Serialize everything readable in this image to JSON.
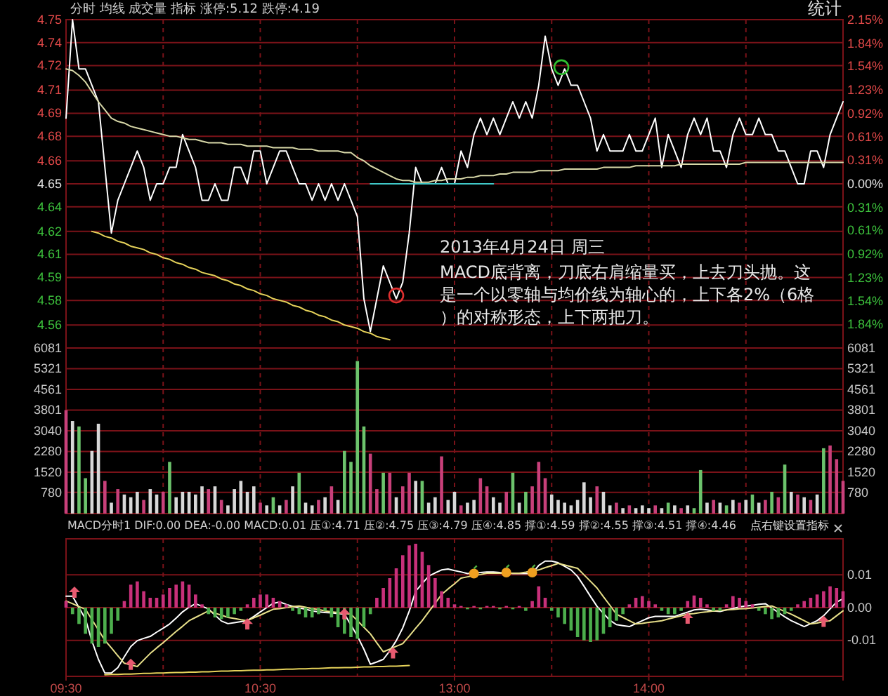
{
  "chart_data": [
    {
      "type": "line",
      "title": "分时 均线 成交量 指标 涨停:5.12 跌停:4.19",
      "annotations": [
        "2013年4月24日 周三",
        "MACD底背离，刀底右肩缩量买，上去刀头抛。这是一个以零轴与均价线为轴心的，上下各2%（6格）的对称形态，上下两把刀。",
        "统计"
      ],
      "categories": [
        null,
        null,
        null,
        null,
        null,
        null,
        null,
        null,
        null,
        null,
        null,
        null,
        null,
        null,
        null,
        null,
        null,
        null,
        null,
        null,
        null,
        null,
        null,
        null,
        null,
        null,
        null,
        null,
        null,
        null,
        null,
        null,
        null,
        null,
        null,
        null,
        null,
        null,
        null,
        null,
        null,
        null,
        null,
        null,
        null,
        null,
        null,
        null,
        null,
        null,
        null,
        null,
        null,
        null,
        null,
        null,
        null,
        null,
        null,
        null,
        null,
        null,
        null,
        null,
        null,
        null,
        null,
        null,
        null,
        null,
        null,
        null,
        null,
        null,
        null,
        null,
        null,
        null,
        null,
        null,
        null,
        null,
        null,
        null,
        null,
        null,
        null,
        null,
        null,
        null,
        null,
        null,
        null,
        null,
        null,
        null,
        null,
        null,
        null,
        null,
        null,
        null,
        null,
        null,
        null,
        null,
        null,
        null,
        null,
        null,
        null,
        null,
        null,
        null,
        null,
        null,
        null,
        null,
        null,
        null,
        null
      ],
      "ylim": [
        4.55,
        4.75
      ],
      "yticks": [
        4.75,
        {
          "value": 4.736,
          "label": "4.74"
        },
        {
          "value": 4.722,
          "label": "4.72"
        },
        {
          "value": 4.707,
          "label": "4.71"
        },
        {
          "value": 4.693,
          "label": "4.69"
        },
        {
          "value": 4.679,
          "label": "4.68"
        },
        {
          "value": 4.664,
          "label": "4.66"
        },
        4.65,
        {
          "value": 4.636,
          "label": "4.64"
        },
        {
          "value": 4.621,
          "label": "4.62"
        },
        {
          "value": 4.607,
          "label": "4.61"
        },
        {
          "value": 4.593,
          "label": "4.59"
        },
        {
          "value": 4.579,
          "label": "4.58"
        },
        {
          "value": 4.564,
          "label": "4.56"
        }
      ],
      "y2lim": [
        -2.15,
        2.15
      ],
      "y2ticks": [
        {
          "value": 2.15,
          "label": "2.15%"
        },
        {
          "value": 1.84,
          "label": "1.84%"
        },
        {
          "value": 1.54,
          "label": "1.54%"
        },
        {
          "value": 1.23,
          "label": "1.23%"
        },
        {
          "value": 0.92,
          "label": "0.92%"
        },
        {
          "value": 0.61,
          "label": "0.61%"
        },
        {
          "value": 0.31,
          "label": "0.31%"
        },
        {
          "value": 0,
          "label": "0.00%"
        },
        {
          "value": -0.31,
          "label": "0.31%"
        },
        {
          "value": -0.61,
          "label": "0.61%"
        },
        {
          "value": -0.92,
          "label": "0.92%"
        },
        {
          "value": -1.23,
          "label": "1.23%"
        },
        {
          "value": -1.54,
          "label": "1.54%"
        },
        {
          "value": -1.84,
          "label": "1.84%"
        }
      ],
      "tick_labels": "y",
      "grid": true,
      "series": [
        {
          "color": "#ffffff",
          "values": [
            4.69,
            4.75,
            4.72,
            4.72,
            4.71,
            4.7,
            4.66,
            4.62,
            4.64,
            4.65,
            4.66,
            4.67,
            4.66,
            4.64,
            4.65,
            4.65,
            4.66,
            4.66,
            4.68,
            4.67,
            4.66,
            4.64,
            4.64,
            4.65,
            4.64,
            4.64,
            4.66,
            4.66,
            4.65,
            4.67,
            4.67,
            4.65,
            4.66,
            4.67,
            4.67,
            4.66,
            4.65,
            4.65,
            4.64,
            4.65,
            4.64,
            4.65,
            4.64,
            4.65,
            4.64,
            4.63,
            4.58,
            4.56,
            4.58,
            4.6,
            4.59,
            4.58,
            4.59,
            4.62,
            4.66,
            4.65,
            4.65,
            4.65,
            4.66,
            4.65,
            4.65,
            4.67,
            4.66,
            4.68,
            4.69,
            4.68,
            4.69,
            4.68,
            4.69,
            4.7,
            4.69,
            4.7,
            4.69,
            4.71,
            4.74,
            4.72,
            4.71,
            4.72,
            4.71,
            4.71,
            4.7,
            4.69,
            4.67,
            4.68,
            4.67,
            4.67,
            4.67,
            4.68,
            4.67,
            4.67,
            4.68,
            4.69,
            4.66,
            4.68,
            4.67,
            4.66,
            4.68,
            4.69,
            4.68,
            4.69,
            4.67,
            4.67,
            4.66,
            4.68,
            4.69,
            4.68,
            4.68,
            4.69,
            4.68,
            4.68,
            4.67,
            4.67,
            4.66,
            4.65,
            4.65,
            4.67,
            4.67,
            4.66,
            4.68,
            4.69,
            4.7
          ]
        },
        {
          "color": "#d8d8a8",
          "values": [
            4.72,
            4.719,
            4.716,
            4.712,
            4.706,
            4.7,
            4.695,
            4.69,
            4.688,
            4.687,
            4.685,
            4.684,
            4.683,
            4.682,
            4.681,
            4.68,
            4.679,
            4.679,
            4.678,
            4.677,
            4.677,
            4.676,
            4.675,
            4.675,
            4.675,
            4.674,
            4.674,
            4.674,
            4.673,
            4.673,
            4.673,
            4.673,
            4.672,
            4.672,
            4.672,
            4.672,
            4.671,
            4.671,
            4.671,
            4.67,
            4.67,
            4.67,
            4.67,
            4.669,
            4.669,
            4.666,
            4.664,
            4.661,
            4.659,
            4.657,
            4.655,
            4.653,
            4.652,
            4.652,
            4.651,
            4.651,
            4.651,
            4.652,
            4.652,
            4.653,
            4.653,
            4.653,
            4.654,
            4.654,
            4.655,
            4.655,
            4.655,
            4.656,
            4.656,
            4.657,
            4.657,
            4.657,
            4.657,
            4.658,
            4.658,
            4.658,
            4.658,
            4.659,
            4.659,
            4.659,
            4.659,
            4.659,
            4.659,
            4.66,
            4.66,
            4.66,
            4.66,
            4.66,
            4.661,
            4.661,
            4.661,
            4.661,
            4.661,
            4.661,
            4.661,
            4.662,
            4.662,
            4.662,
            4.662,
            4.662,
            4.662,
            4.662,
            4.662,
            4.662,
            4.662,
            4.663,
            4.663,
            4.663,
            4.663,
            4.663,
            4.663,
            4.663,
            4.663,
            4.663,
            4.663,
            4.663,
            4.663,
            4.663,
            4.663,
            4.663,
            4.663
          ]
        },
        {
          "color": "#e6d25a",
          "values": [
            null,
            null,
            null,
            null,
            4.621,
            4.62,
            4.618,
            4.617,
            4.615,
            4.614,
            4.612,
            4.611,
            4.61,
            4.608,
            4.607,
            4.605,
            4.604,
            4.602,
            4.601,
            4.599,
            4.598,
            4.596,
            4.595,
            4.594,
            4.592,
            4.591,
            4.589,
            4.588,
            4.586,
            4.585,
            4.583,
            4.582,
            4.58,
            4.579,
            4.578,
            4.576,
            4.575,
            4.573,
            4.572,
            4.57,
            4.569,
            4.567,
            4.566,
            4.564,
            4.563,
            4.562,
            4.56,
            4.559,
            4.557,
            4.556,
            4.555,
            null,
            null,
            null,
            null,
            null,
            null,
            null,
            null,
            null,
            null,
            null,
            null,
            null,
            null,
            null,
            null,
            null,
            null,
            null,
            null,
            null,
            null,
            null,
            null,
            null,
            null,
            null,
            null,
            null,
            null,
            null,
            null,
            null,
            null,
            null,
            null,
            null,
            null,
            null,
            null,
            null,
            null,
            null,
            null,
            null,
            null,
            null,
            null,
            null,
            null,
            null,
            null,
            null,
            null,
            null,
            null,
            null,
            null,
            null,
            null,
            null,
            null,
            null,
            null,
            null,
            null,
            null,
            null,
            null,
            null
          ]
        },
        {
          "color": "#40c8c8",
          "values": [
            null,
            null,
            null,
            null,
            null,
            null,
            null,
            null,
            null,
            null,
            null,
            null,
            null,
            null,
            null,
            null,
            null,
            null,
            null,
            null,
            null,
            null,
            null,
            null,
            null,
            null,
            null,
            null,
            null,
            null,
            null,
            null,
            null,
            null,
            null,
            null,
            null,
            null,
            null,
            null,
            null,
            null,
            null,
            null,
            null,
            null,
            null,
            4.65,
            4.65,
            4.65,
            4.65,
            4.65,
            4.65,
            4.65,
            4.65,
            4.65,
            4.65,
            4.65,
            4.65,
            4.65,
            4.65,
            4.65,
            4.65,
            4.65,
            4.65,
            4.65,
            4.65,
            null,
            null,
            null,
            null,
            null,
            null,
            null,
            null,
            null,
            null,
            null,
            null,
            null,
            null,
            null,
            null,
            null,
            null,
            null,
            null,
            null,
            null,
            null,
            null,
            null,
            null,
            null,
            null,
            null,
            null,
            null,
            null,
            null,
            null,
            null,
            null,
            null,
            null,
            null,
            null,
            null,
            null,
            null,
            null,
            null,
            null,
            null,
            null,
            null,
            null,
            null,
            null,
            null,
            null
          ]
        }
      ]
    },
    {
      "type": "bar",
      "categories": [
        null,
        null,
        null,
        null,
        null,
        null,
        null,
        null,
        null,
        null,
        null,
        null,
        null,
        null,
        null,
        null,
        null,
        null,
        null,
        null,
        null,
        null,
        null,
        null,
        null,
        null,
        null,
        null,
        null,
        null,
        null,
        null,
        null,
        null,
        null,
        null,
        null,
        null,
        null,
        null,
        null,
        null,
        null,
        null,
        null,
        null,
        null,
        null,
        null,
        null,
        null,
        null,
        null,
        null,
        null,
        null,
        null,
        null,
        null,
        null,
        null,
        null,
        null,
        null,
        null,
        null,
        null,
        null,
        null,
        null,
        null,
        null,
        null,
        null,
        null,
        null,
        null,
        null,
        null,
        null,
        null,
        null,
        null,
        null,
        null,
        null,
        null,
        null,
        null,
        null,
        null,
        null,
        null,
        null,
        null,
        null,
        null,
        null,
        null,
        null,
        null,
        null,
        null,
        null,
        null,
        null,
        null,
        null,
        null,
        null,
        null,
        null,
        null,
        null,
        null,
        null,
        null,
        null,
        null,
        null,
        null
      ],
      "ylim": [
        0,
        6081
      ],
      "yticks": [
        780,
        1520,
        2280,
        3040,
        3801,
        4561,
        5321,
        6081
      ],
      "y2lim": [
        0,
        6081
      ],
      "y2ticks": [
        780,
        1520,
        2280,
        3040,
        3801,
        4561,
        5321,
        6081
      ],
      "tick_labels": "y",
      "grid": true,
      "series": [
        {
          "values": [
            3800,
            3400,
            3200,
            1300,
            2300,
            3300,
            1200,
            400,
            900,
            700,
            600,
            800,
            500,
            900,
            700,
            800,
            1900,
            600,
            800,
            800,
            700,
            1000,
            900,
            1000,
            500,
            300,
            900,
            1200,
            800,
            1000,
            400,
            300,
            600,
            300,
            500,
            1000,
            1500,
            400,
            300,
            500,
            600,
            1000,
            500,
            2300,
            1900,
            5600,
            3200,
            2200,
            900,
            1500,
            1500,
            600,
            1000,
            1500,
            1200,
            1200,
            400,
            600,
            2100,
            500,
            800,
            300,
            400,
            500,
            1300,
            1000,
            600,
            400,
            800,
            1500,
            400,
            800,
            1000,
            1900,
            1300,
            700,
            500,
            400,
            300,
            500,
            1150,
            600,
            1000,
            800,
            300,
            400,
            200,
            300,
            200,
            300,
            200,
            300,
            200,
            400,
            300,
            200,
            300,
            200,
            1600,
            400,
            500,
            400,
            300,
            500,
            400,
            500,
            700,
            400,
            500,
            800,
            600,
            1800,
            800,
            700,
            600,
            500,
            700,
            2400,
            2500,
            2000,
            1200
          ],
          "colors": [
            "#c8407a",
            "#d8d8d8",
            "#6cc36c",
            "#6cc36c",
            "#d8d8d8",
            "#d8d8d8",
            "#c8407a",
            "#d8d8d8",
            "#c8407a",
            "#d8d8d8",
            "#d8d8d8",
            "#d8d8d8",
            "#c8407a",
            "#d8d8d8",
            "#d8d8d8",
            "#c8407a",
            "#6cc36c",
            "#d8d8d8",
            "#d8d8d8",
            "#d8d8d8",
            "#d8d8d8",
            "#d8d8d8",
            "#c8407a",
            "#d8d8d8",
            "#c8407a",
            "#d8d8d8",
            "#d8d8d8",
            "#d8d8d8",
            "#d8d8d8",
            "#d8d8d8",
            "#c8407a",
            "#d8d8d8",
            "#6cc36c",
            "#d8d8d8",
            "#c8407a",
            "#d8d8d8",
            "#6cc36c",
            "#d8d8d8",
            "#d8d8d8",
            "#c8407a",
            "#d8d8d8",
            "#c8407a",
            "#d8d8d8",
            "#6cc36c",
            "#6cc36c",
            "#6cc36c",
            "#6cc36c",
            "#c8407a",
            "#c8407a",
            "#6cc36c",
            "#c8407a",
            "#d8d8d8",
            "#c8407a",
            "#c8407a",
            "#d8d8d8",
            "#6cc36c",
            "#d8d8d8",
            "#d8d8d8",
            "#c8407a",
            "#d8d8d8",
            "#d8d8d8",
            "#c8407a",
            "#d8d8d8",
            "#d8d8d8",
            "#c8407a",
            "#c8407a",
            "#d8d8d8",
            "#d8d8d8",
            "#c8407a",
            "#6cc36c",
            "#d8d8d8",
            "#6cc36c",
            "#c8407a",
            "#c8407a",
            "#c8407a",
            "#d8d8d8",
            "#d8d8d8",
            "#d8d8d8",
            "#d8d8d8",
            "#d8d8d8",
            "#d8d8d8",
            "#d8d8d8",
            "#c8407a",
            "#d8d8d8",
            "#d8d8d8",
            "#c8407a",
            "#d8d8d8",
            "#c8407a",
            "#d8d8d8",
            "#d8d8d8",
            "#d8d8d8",
            "#c8407a",
            "#d8d8d8",
            "#6cc36c",
            "#d8d8d8",
            "#c8407a",
            "#d8d8d8",
            "#6cc36c",
            "#6cc36c",
            "#d8d8d8",
            "#c8407a",
            "#d8d8d8",
            "#6cc36c",
            "#d8d8d8",
            "#c8407a",
            "#d8d8d8",
            "#6cc36c",
            "#d8d8d8",
            "#c8407a",
            "#6cc36c",
            "#c8407a",
            "#6cc36c",
            "#d8d8d8",
            "#c8407a",
            "#d8d8d8",
            "#c8407a",
            "#d8d8d8",
            "#6cc36c",
            "#c8407a",
            "#c8407a",
            "#c8407a"
          ]
        }
      ]
    },
    {
      "type": "bar",
      "title": "MACD分时1 DIF:0.00 DEA:-0.00 MACD:0.01 压①:4.71 压②:4.75 压③:4.79 压④:4.85 撑①:4.59 撑②:4.55 撑③:4.51 撑④:4.46",
      "annotations": [
        "点右键设置指标"
      ],
      "categories": [
        "09:30",
        null,
        null,
        null,
        null,
        null,
        null,
        null,
        null,
        null,
        null,
        null,
        null,
        null,
        null,
        null,
        null,
        null,
        null,
        null,
        null,
        null,
        null,
        null,
        null,
        null,
        null,
        null,
        null,
        null,
        "10:30",
        null,
        null,
        null,
        null,
        null,
        null,
        null,
        null,
        null,
        null,
        null,
        null,
        null,
        null,
        null,
        null,
        null,
        null,
        null,
        null,
        null,
        null,
        null,
        null,
        null,
        null,
        null,
        null,
        null,
        "13:00",
        null,
        null,
        null,
        null,
        null,
        null,
        null,
        null,
        null,
        null,
        null,
        null,
        null,
        null,
        null,
        null,
        null,
        null,
        null,
        null,
        null,
        null,
        null,
        null,
        null,
        null,
        null,
        null,
        null,
        "14:00",
        null,
        null,
        null,
        null,
        null,
        null,
        null,
        null,
        null,
        null,
        null,
        null,
        null,
        null,
        null,
        null,
        null,
        null,
        null,
        null,
        null,
        null,
        null,
        null,
        null,
        null,
        null,
        null,
        null,
        null
      ],
      "y2lim": [
        -0.021,
        0.021
      ],
      "y2ticks": [
        0.01,
        {
          "value": 0,
          "label": "0.00"
        },
        -0.01
      ],
      "grid": true,
      "series": [
        {
          "axis": "y2",
          "values": [
            0.002,
            -0.002,
            -0.005,
            -0.008,
            -0.011,
            -0.012,
            -0.011,
            -0.008,
            -0.004,
            0.002,
            0.007,
            0.008,
            0.005,
            0.003,
            0.003,
            0.004,
            0.006,
            0.007,
            0.008,
            0.007,
            0.004,
            0.001,
            -0.002,
            -0.003,
            -0.0035,
            -0.003,
            -0.002,
            -0.001,
            0.001,
            0.003,
            0.004,
            0.004,
            0.003,
            0.002,
            0.001,
            -0.001,
            -0.002,
            -0.003,
            -0.003,
            -0.002,
            -0.001,
            -0.003,
            -0.006,
            -0.008,
            -0.009,
            -0.0095,
            -0.006,
            -0.002,
            0.003,
            0.006,
            0.009,
            0.012,
            0.016,
            0.019,
            0.0195,
            0.017,
            0.013,
            0.009,
            0.005,
            0.003,
            0.001,
            0.0005,
            -0.0005,
            0.0005,
            -0.0005,
            0.0005,
            0.0005,
            -0.0005,
            0.0005,
            -0.0005,
            0.0005,
            -0.001,
            0.002,
            0.0065,
            0.003,
            -0.001,
            -0.003,
            -0.005,
            -0.007,
            -0.009,
            -0.01,
            -0.0105,
            -0.01,
            -0.008,
            -0.006,
            -0.004,
            -0.002,
            0.001,
            0.003,
            0.0035,
            0.002,
            0.001,
            -0.001,
            -0.002,
            -0.002,
            -0.001,
            0.002,
            0.0037,
            0.003,
            0.001,
            -0.001,
            -0.001,
            0.001,
            0.0035,
            0.003,
            0.002,
            0.001,
            -0.001,
            -0.002,
            -0.0035,
            -0.003,
            -0.002,
            -0.001,
            0.001,
            0.002,
            0.003,
            0.004,
            0.005,
            0.0065,
            0.006,
            0.005
          ],
          "colors": [
            "#c8307a",
            "#4cae4c",
            "#4cae4c",
            "#4cae4c",
            "#4cae4c",
            "#4cae4c",
            "#4cae4c",
            "#4cae4c",
            "#4cae4c",
            "#c8307a",
            "#c8307a",
            "#c8307a",
            "#c8307a",
            "#c8307a",
            "#c8307a",
            "#c8307a",
            "#c8307a",
            "#c8307a",
            "#c8307a",
            "#c8307a",
            "#c8307a",
            "#c8307a",
            "#4cae4c",
            "#4cae4c",
            "#4cae4c",
            "#4cae4c",
            "#4cae4c",
            "#4cae4c",
            "#c8307a",
            "#c8307a",
            "#c8307a",
            "#c8307a",
            "#c8307a",
            "#c8307a",
            "#c8307a",
            "#4cae4c",
            "#4cae4c",
            "#4cae4c",
            "#4cae4c",
            "#4cae4c",
            "#4cae4c",
            "#4cae4c",
            "#4cae4c",
            "#4cae4c",
            "#4cae4c",
            "#4cae4c",
            "#4cae4c",
            "#4cae4c",
            "#c8307a",
            "#c8307a",
            "#c8307a",
            "#c8307a",
            "#c8307a",
            "#c8307a",
            "#c8307a",
            "#c8307a",
            "#c8307a",
            "#c8307a",
            "#c8307a",
            "#c8307a",
            "#c8307a",
            "#c8307a",
            "#4cae4c",
            "#c8307a",
            "#4cae4c",
            "#c8307a",
            "#c8307a",
            "#4cae4c",
            "#c8307a",
            "#4cae4c",
            "#c8307a",
            "#4cae4c",
            "#c8307a",
            "#c8307a",
            "#c8307a",
            "#4cae4c",
            "#4cae4c",
            "#4cae4c",
            "#4cae4c",
            "#4cae4c",
            "#4cae4c",
            "#4cae4c",
            "#4cae4c",
            "#4cae4c",
            "#4cae4c",
            "#4cae4c",
            "#4cae4c",
            "#c8307a",
            "#c8307a",
            "#c8307a",
            "#c8307a",
            "#c8307a",
            "#4cae4c",
            "#4cae4c",
            "#4cae4c",
            "#4cae4c",
            "#c8307a",
            "#c8307a",
            "#c8307a",
            "#c8307a",
            "#4cae4c",
            "#4cae4c",
            "#c8307a",
            "#c8307a",
            "#c8307a",
            "#c8307a",
            "#c8307a",
            "#4cae4c",
            "#4cae4c",
            "#4cae4c",
            "#4cae4c",
            "#4cae4c",
            "#4cae4c",
            "#c8307a",
            "#c8307a",
            "#c8307a",
            "#c8307a",
            "#c8307a",
            "#c8307a",
            "#c8307a",
            "#c8307a"
          ]
        },
        {
          "type": "line",
          "axis": "y2",
          "color": "#ffffff",
          "values": [
            0.0035,
            0.0035,
            0.0,
            -0.0035,
            -0.0102,
            -0.0158,
            -0.02,
            -0.02,
            -0.0183,
            -0.015,
            -0.0119,
            -0.0101,
            -0.0094,
            -0.0088,
            -0.0075,
            -0.0063,
            -0.005,
            -0.0032,
            -0.0013,
            0.0001,
            0.0012,
            0.0004,
            -0.0004,
            -0.0023,
            -0.0041,
            -0.0049,
            -0.0046,
            -0.0043,
            -0.004,
            -0.0027,
            -0.0013,
            0.0,
            0.0013,
            0.0017,
            0.001,
            0.0004,
            -0.0001,
            -0.0005,
            -0.001,
            -0.0013,
            -0.0015,
            -0.0016,
            -0.0018,
            -0.002,
            -0.0053,
            -0.0087,
            -0.0127,
            -0.0173,
            -0.0166,
            -0.0158,
            -0.0132,
            -0.0101,
            -0.0062,
            -0.0011,
            0.005,
            0.0073,
            0.0096,
            0.0106,
            0.0115,
            0.0118,
            0.0113,
            0.0109,
            0.0104,
            0.0106,
            0.0107,
            0.0109,
            0.0109,
            0.0107,
            0.0106,
            0.0104,
            0.0104,
            0.0104,
            0.0104,
            0.0129,
            0.0142,
            0.0142,
            0.0137,
            0.0126,
            0.0115,
            0.0095,
            0.0065,
            0.0034,
            0.0004,
            -0.0018,
            -0.0039,
            -0.0052,
            -0.0055,
            -0.0058,
            -0.0049,
            -0.004,
            -0.0031,
            -0.0027,
            -0.0027,
            -0.0027,
            -0.0027,
            -0.002,
            -0.0014,
            -0.0007,
            -0.0005,
            -0.0007,
            -0.001,
            -0.0012,
            -0.0007,
            -0.0003,
            0.0002,
            0.0005,
            0.0007,
            0.001,
            0.0012,
            -0.0001,
            -0.0015,
            -0.0028,
            -0.004,
            -0.0049,
            -0.0058,
            -0.0049,
            -0.004,
            -0.0025,
            -0.0004,
            0.0017,
            0.0027
          ]
        },
        {
          "type": "line",
          "axis": "y2",
          "color": "#e8e08a",
          "values": [
            0.002,
            0.0012,
            0.0003,
            -0.0005,
            -0.0037,
            -0.0068,
            -0.01,
            -0.0123,
            -0.0147,
            -0.017,
            -0.0175,
            -0.018,
            -0.016,
            -0.014,
            -0.0123,
            -0.0107,
            -0.009,
            -0.0073,
            -0.0057,
            -0.004,
            -0.003,
            -0.002,
            -0.001,
            -0.0017,
            -0.0023,
            -0.003,
            -0.0033,
            -0.0037,
            -0.004,
            -0.0031,
            -0.0023,
            -0.0014,
            -0.0005,
            -0.0003,
            0.0,
            0.0003,
            0.0005,
            0.0001,
            -0.0003,
            -0.0006,
            -0.001,
            -0.0013,
            -0.0015,
            -0.0018,
            -0.002,
            -0.004,
            -0.006,
            -0.008,
            -0.0108,
            -0.0135,
            -0.0127,
            -0.0118,
            -0.011,
            -0.0087,
            -0.0063,
            -0.004,
            -0.0013,
            0.0013,
            0.004,
            0.0057,
            0.0073,
            0.009,
            0.0094,
            0.0098,
            0.0101,
            0.0105,
            0.0105,
            0.0105,
            0.0105,
            0.0105,
            0.0105,
            0.0108,
            0.0112,
            0.0115,
            0.0122,
            0.0128,
            0.0135,
            0.013,
            0.0125,
            0.012,
            0.01,
            0.008,
            0.006,
            0.0033,
            0.0007,
            -0.002,
            -0.003,
            -0.004,
            -0.005,
            -0.0048,
            -0.0045,
            -0.0043,
            -0.004,
            -0.0035,
            -0.003,
            -0.0025,
            -0.002,
            -0.0018,
            -0.0015,
            -0.0013,
            -0.001,
            -0.0009,
            -0.0007,
            -0.0006,
            -0.0004,
            -0.0003,
            -0.0001,
            0.0001,
            0.0003,
            0.0005,
            -0.0003,
            -0.0012,
            -0.002,
            -0.003,
            -0.004,
            -0.005,
            -0.0047,
            -0.0043,
            -0.004,
            -0.0025,
            -0.001
          ]
        },
        {
          "type": "line",
          "axis": "y2",
          "color": "#e6d25a",
          "values": [
            null,
            null,
            null,
            null,
            null,
            null,
            -0.0205,
            -0.0204,
            -0.0204,
            -0.0203,
            -0.0203,
            -0.0202,
            -0.0201,
            -0.0201,
            -0.02,
            -0.02,
            -0.0199,
            -0.0198,
            -0.0198,
            -0.0197,
            -0.0197,
            -0.0196,
            -0.0196,
            -0.0195,
            -0.0194,
            -0.0194,
            -0.0193,
            -0.0193,
            -0.0192,
            -0.0191,
            -0.0191,
            -0.019,
            -0.019,
            -0.0189,
            -0.0188,
            -0.0188,
            -0.0187,
            -0.0187,
            -0.0186,
            -0.0186,
            -0.0185,
            -0.0184,
            -0.0184,
            -0.0183,
            -0.0183,
            -0.0182,
            -0.0181,
            -0.0181,
            -0.018,
            -0.018,
            -0.0179,
            -0.0179,
            -0.0178,
            -0.0177,
            null,
            null,
            null,
            null,
            null,
            null,
            null,
            null,
            null,
            null,
            null,
            null,
            null,
            null,
            null,
            null,
            null,
            null,
            null,
            null,
            null,
            null,
            null,
            null,
            null,
            null,
            null,
            null,
            null,
            null,
            null,
            null,
            null,
            null,
            null,
            null,
            null,
            null,
            null,
            null,
            null,
            null,
            null,
            null,
            null,
            null,
            null,
            null,
            null,
            null,
            null,
            null,
            null,
            null,
            null,
            null,
            null,
            null,
            null,
            null,
            null,
            null,
            null,
            null,
            null,
            null,
            null
          ]
        }
      ]
    }
  ]
}
